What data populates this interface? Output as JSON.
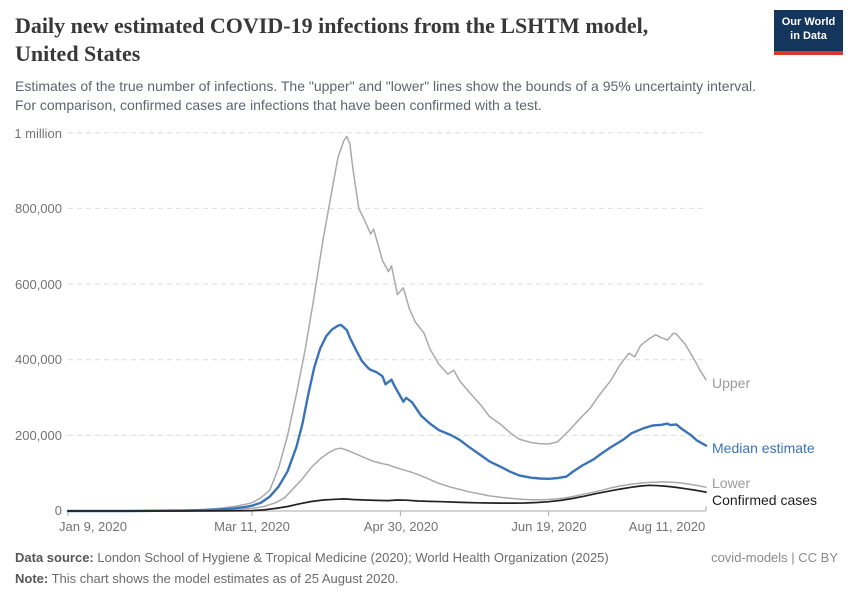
{
  "header": {
    "title_lines": [
      "Daily new estimated COVID-19 infections from the LSHTM model,",
      "United States"
    ],
    "subtitle_lines": [
      "Estimates of the true number of infections. The \"upper\" and \"lower\" lines show the bounds of a 95% uncertainty interval.",
      "For comparison, confirmed cases are infections that have been confirmed with a test."
    ],
    "logo": {
      "line1": "Our World",
      "line2": "in Data",
      "bg_color": "#14355c",
      "accent_color": "#d7392f"
    }
  },
  "footer": {
    "data_source_label": "Data source:",
    "data_source_text": " London School of Hygiene & Tropical Medicine (2020); World Health Organization (2025)",
    "note_label": "Note:",
    "note_text": " This chart shows the model estimates as of 25 August 2020.",
    "license": "covid-models | CC BY"
  },
  "chart_data": {
    "type": "line",
    "title": "Daily new estimated COVID-19 infections from the LSHTM model, United States",
    "x_unit": "days since Jan 9, 2020",
    "xlim_days": [
      0,
      215
    ],
    "ylim": [
      0,
      1000000
    ],
    "grid": "horizontal dashed",
    "legend_position": "right edge of lines",
    "x_tick_days": [
      0,
      62,
      112,
      162,
      215
    ],
    "x_tick_labels": [
      "Jan 9, 2020",
      "Mar 11, 2020",
      "Apr 30, 2020",
      "Jun 19, 2020",
      "Aug 11, 2020"
    ],
    "y_ticks": [
      0,
      200000,
      400000,
      600000,
      800000,
      1000000
    ],
    "y_tick_labels": [
      "0",
      "200,000",
      "400,000",
      "600,000",
      "800,000",
      "1 million"
    ],
    "colors": {
      "upper_lower": "#a9a9a9",
      "median": "#3b73b8",
      "confirmed": "#222222",
      "grid": "#dcdcdc",
      "axis": "#a9a9a9"
    },
    "series": [
      {
        "name": "Upper",
        "slug": "upper",
        "color": "#a9a9a9",
        "width": 1.5,
        "points": [
          [
            0,
            0
          ],
          [
            14,
            100
          ],
          [
            28,
            600
          ],
          [
            40,
            2000
          ],
          [
            46,
            4000
          ],
          [
            52,
            8000
          ],
          [
            56,
            12000
          ],
          [
            60,
            18000
          ],
          [
            62,
            22000
          ],
          [
            65,
            35000
          ],
          [
            68,
            55000
          ],
          [
            71,
            115000
          ],
          [
            74,
            200000
          ],
          [
            77,
            310000
          ],
          [
            80,
            430000
          ],
          [
            83,
            570000
          ],
          [
            86,
            720000
          ],
          [
            89,
            850000
          ],
          [
            91,
            935000
          ],
          [
            93,
            980000
          ],
          [
            94,
            990000
          ],
          [
            95,
            970000
          ],
          [
            96,
            905000
          ],
          [
            98,
            800000
          ],
          [
            100,
            768000
          ],
          [
            102,
            732000
          ],
          [
            103,
            745000
          ],
          [
            105,
            690000
          ],
          [
            106,
            662000
          ],
          [
            108,
            633000
          ],
          [
            109,
            648000
          ],
          [
            111,
            572000
          ],
          [
            113,
            590000
          ],
          [
            115,
            535000
          ],
          [
            117,
            500000
          ],
          [
            120,
            470000
          ],
          [
            122,
            428000
          ],
          [
            125,
            388000
          ],
          [
            128,
            362000
          ],
          [
            130,
            372000
          ],
          [
            132,
            344000
          ],
          [
            135,
            316000
          ],
          [
            139,
            281000
          ],
          [
            142,
            250000
          ],
          [
            146,
            228000
          ],
          [
            149,
            207000
          ],
          [
            152,
            190000
          ],
          [
            156,
            181000
          ],
          [
            159,
            178000
          ],
          [
            162,
            177000
          ],
          [
            165,
            183000
          ],
          [
            169,
            214000
          ],
          [
            172,
            240000
          ],
          [
            176,
            272000
          ],
          [
            179,
            306000
          ],
          [
            183,
            346000
          ],
          [
            186,
            386000
          ],
          [
            189,
            417000
          ],
          [
            191,
            408000
          ],
          [
            193,
            438000
          ],
          [
            196,
            456000
          ],
          [
            198,
            466000
          ],
          [
            200,
            458000
          ],
          [
            202,
            452000
          ],
          [
            204,
            470000
          ],
          [
            205,
            468000
          ],
          [
            208,
            441000
          ],
          [
            211,
            401000
          ],
          [
            213,
            372000
          ],
          [
            215,
            347000
          ]
        ]
      },
      {
        "name": "Lower",
        "slug": "lower",
        "color": "#a9a9a9",
        "width": 1.5,
        "points": [
          [
            0,
            0
          ],
          [
            30,
            300
          ],
          [
            45,
            1200
          ],
          [
            52,
            2500
          ],
          [
            58,
            4500
          ],
          [
            62,
            7000
          ],
          [
            66,
            12000
          ],
          [
            70,
            22000
          ],
          [
            73,
            35000
          ],
          [
            76,
            60000
          ],
          [
            79,
            85000
          ],
          [
            82,
            115000
          ],
          [
            85,
            138000
          ],
          [
            88,
            155000
          ],
          [
            90,
            163000
          ],
          [
            92,
            166000
          ],
          [
            94,
            161000
          ],
          [
            97,
            151000
          ],
          [
            100,
            141000
          ],
          [
            103,
            131000
          ],
          [
            106,
            125000
          ],
          [
            108,
            122000
          ],
          [
            110,
            116000
          ],
          [
            113,
            109000
          ],
          [
            116,
            102000
          ],
          [
            119,
            93000
          ],
          [
            122,
            83000
          ],
          [
            125,
            73000
          ],
          [
            129,
            63000
          ],
          [
            132,
            57000
          ],
          [
            135,
            51000
          ],
          [
            139,
            45000
          ],
          [
            142,
            40000
          ],
          [
            146,
            36000
          ],
          [
            149,
            33500
          ],
          [
            152,
            31500
          ],
          [
            156,
            30000
          ],
          [
            160,
            29800
          ],
          [
            163,
            31000
          ],
          [
            167,
            34000
          ],
          [
            170,
            38000
          ],
          [
            173,
            43000
          ],
          [
            176,
            48000
          ],
          [
            180,
            55000
          ],
          [
            183,
            61000
          ],
          [
            186,
            66000
          ],
          [
            190,
            71000
          ],
          [
            194,
            74500
          ],
          [
            197,
            76000
          ],
          [
            200,
            77000
          ],
          [
            203,
            76500
          ],
          [
            206,
            74500
          ],
          [
            209,
            71500
          ],
          [
            212,
            67500
          ],
          [
            215,
            63000
          ]
        ]
      },
      {
        "name": "Median estimate",
        "slug": "median-estimate",
        "color": "#3b73b8",
        "width": 2.4,
        "points": [
          [
            0,
            0
          ],
          [
            20,
            100
          ],
          [
            40,
            1200
          ],
          [
            50,
            3500
          ],
          [
            56,
            7000
          ],
          [
            60,
            11000
          ],
          [
            62,
            14000
          ],
          [
            65,
            22000
          ],
          [
            68,
            38000
          ],
          [
            71,
            65000
          ],
          [
            74,
            105000
          ],
          [
            77,
            170000
          ],
          [
            79,
            230000
          ],
          [
            81,
            310000
          ],
          [
            83,
            380000
          ],
          [
            85,
            430000
          ],
          [
            87,
            462000
          ],
          [
            89,
            480000
          ],
          [
            91,
            490000
          ],
          [
            92,
            492000
          ],
          [
            94,
            478000
          ],
          [
            95,
            458000
          ],
          [
            97,
            427000
          ],
          [
            99,
            397000
          ],
          [
            101,
            379000
          ],
          [
            102,
            373000
          ],
          [
            104,
            367000
          ],
          [
            106,
            356000
          ],
          [
            107,
            335000
          ],
          [
            109,
            347000
          ],
          [
            110,
            331000
          ],
          [
            112,
            303000
          ],
          [
            113,
            289000
          ],
          [
            114,
            299000
          ],
          [
            116,
            287000
          ],
          [
            119,
            252000
          ],
          [
            122,
            231000
          ],
          [
            125,
            214000
          ],
          [
            129,
            201000
          ],
          [
            132,
            188000
          ],
          [
            135,
            170000
          ],
          [
            139,
            148000
          ],
          [
            142,
            131000
          ],
          [
            146,
            116000
          ],
          [
            149,
            104000
          ],
          [
            152,
            94000
          ],
          [
            156,
            88000
          ],
          [
            159,
            86000
          ],
          [
            162,
            85000
          ],
          [
            165,
            87000
          ],
          [
            168,
            91000
          ],
          [
            170,
            103000
          ],
          [
            173,
            119000
          ],
          [
            177,
            136000
          ],
          [
            180,
            153000
          ],
          [
            183,
            169000
          ],
          [
            187,
            188000
          ],
          [
            190,
            206000
          ],
          [
            194,
            219000
          ],
          [
            197,
            226000
          ],
          [
            200,
            228000
          ],
          [
            202,
            231000
          ],
          [
            203,
            227000
          ],
          [
            205,
            229000
          ],
          [
            207,
            216000
          ],
          [
            210,
            200000
          ],
          [
            212,
            186000
          ],
          [
            215,
            173000
          ]
        ]
      },
      {
        "name": "Confirmed cases",
        "slug": "confirmed-cases",
        "color": "#222222",
        "width": 1.7,
        "points": [
          [
            0,
            0
          ],
          [
            40,
            50
          ],
          [
            52,
            200
          ],
          [
            58,
            500
          ],
          [
            62,
            1000
          ],
          [
            66,
            3000
          ],
          [
            70,
            7000
          ],
          [
            74,
            12000
          ],
          [
            78,
            19000
          ],
          [
            82,
            25000
          ],
          [
            86,
            29000
          ],
          [
            90,
            31000
          ],
          [
            93,
            32000
          ],
          [
            96,
            30500
          ],
          [
            100,
            29000
          ],
          [
            104,
            28000
          ],
          [
            108,
            27500
          ],
          [
            111,
            29000
          ],
          [
            114,
            28500
          ],
          [
            118,
            26500
          ],
          [
            122,
            25500
          ],
          [
            126,
            24500
          ],
          [
            130,
            23500
          ],
          [
            134,
            22500
          ],
          [
            138,
            21800
          ],
          [
            142,
            21200
          ],
          [
            146,
            21000
          ],
          [
            150,
            20800
          ],
          [
            154,
            21200
          ],
          [
            158,
            22500
          ],
          [
            162,
            24500
          ],
          [
            166,
            28000
          ],
          [
            170,
            33000
          ],
          [
            174,
            39000
          ],
          [
            178,
            46000
          ],
          [
            182,
            52000
          ],
          [
            186,
            58000
          ],
          [
            190,
            63000
          ],
          [
            193,
            66000
          ],
          [
            196,
            68000
          ],
          [
            199,
            67000
          ],
          [
            202,
            65000
          ],
          [
            205,
            62500
          ],
          [
            208,
            59000
          ],
          [
            211,
            55500
          ],
          [
            213,
            52500
          ],
          [
            215,
            50000
          ]
        ]
      }
    ]
  }
}
